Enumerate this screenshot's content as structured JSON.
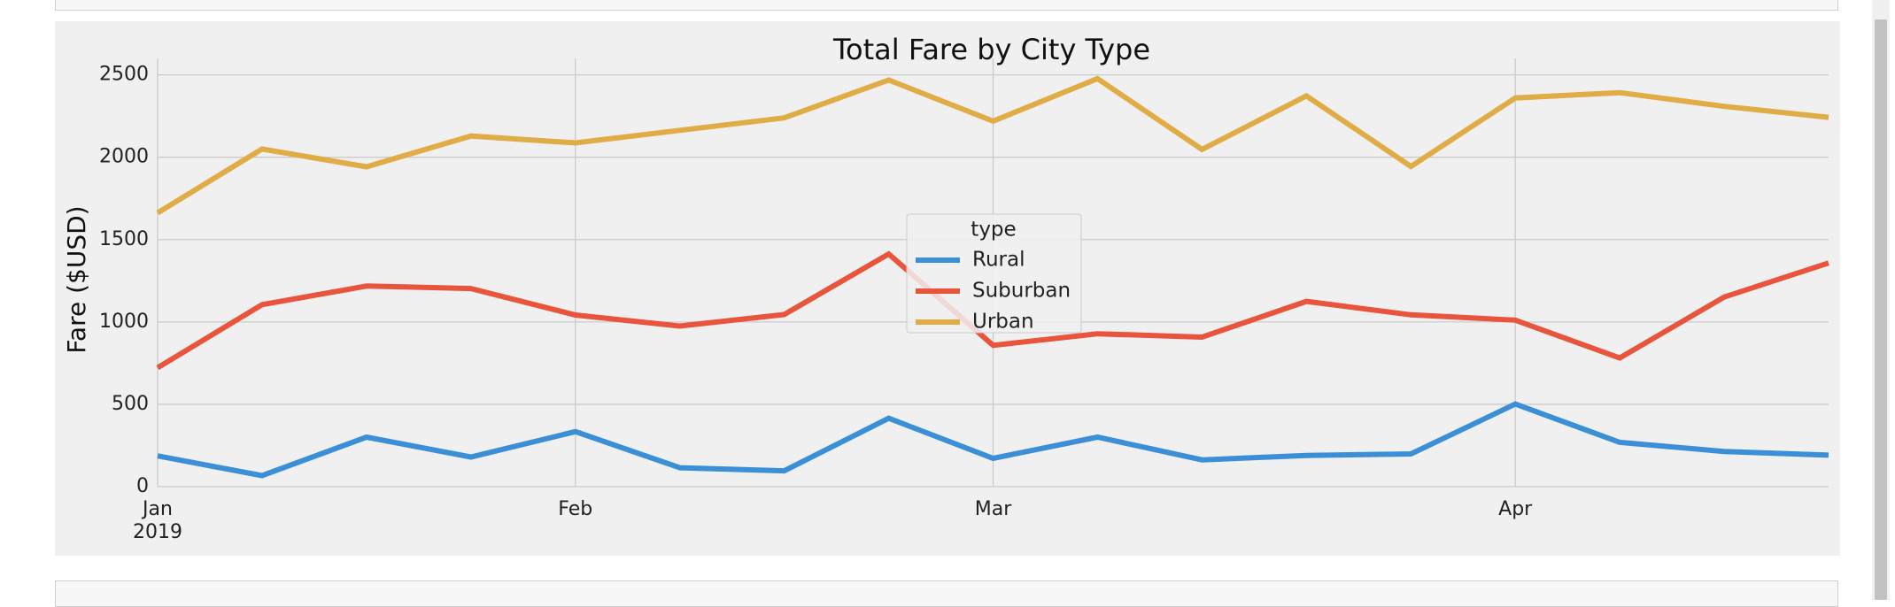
{
  "chart_data": {
    "type": "line",
    "title": "Total Fare by City Type",
    "xlabel": "",
    "ylabel": "Fare ($USD)",
    "x": [
      "2019-01-06",
      "2019-01-13",
      "2019-01-20",
      "2019-01-27",
      "2019-02-03",
      "2019-02-10",
      "2019-02-17",
      "2019-02-24",
      "2019-03-03",
      "2019-03-10",
      "2019-03-17",
      "2019-03-24",
      "2019-03-31",
      "2019-04-07",
      "2019-04-14",
      "2019-04-21",
      "2019-04-28"
    ],
    "x_ticks": [
      {
        "date": "2019-01-06",
        "label": "Jan",
        "sublabel": "2019"
      },
      {
        "date": "2019-02-03",
        "label": "Feb",
        "sublabel": ""
      },
      {
        "date": "2019-03-03",
        "label": "Mar",
        "sublabel": ""
      },
      {
        "date": "2019-04-07",
        "label": "Apr",
        "sublabel": ""
      }
    ],
    "ylim": [
      0,
      2600
    ],
    "y_ticks": [
      0,
      500,
      1000,
      1500,
      2000,
      2500
    ],
    "grid": true,
    "legend": {
      "title": "type",
      "placement": "center"
    },
    "series": [
      {
        "name": "Rural",
        "color": "#3b8fd6",
        "values": [
          187,
          67,
          301,
          180,
          334,
          115,
          96,
          415,
          172,
          301,
          163,
          189,
          199,
          502,
          269,
          214,
          191
        ]
      },
      {
        "name": "Suburban",
        "color": "#e8543c",
        "values": [
          722,
          1105,
          1218,
          1203,
          1042,
          975,
          1045,
          1413,
          858,
          928,
          908,
          1125,
          1043,
          1011,
          781,
          1151,
          1358
        ]
      },
      {
        "name": "Urban",
        "color": "#e0ac46",
        "values": [
          1662,
          2050,
          1942,
          2129,
          2087,
          2163,
          2239,
          2469,
          2219,
          2477,
          2047,
          2372,
          1944,
          2360,
          2392,
          2309,
          2242
        ]
      }
    ]
  }
}
